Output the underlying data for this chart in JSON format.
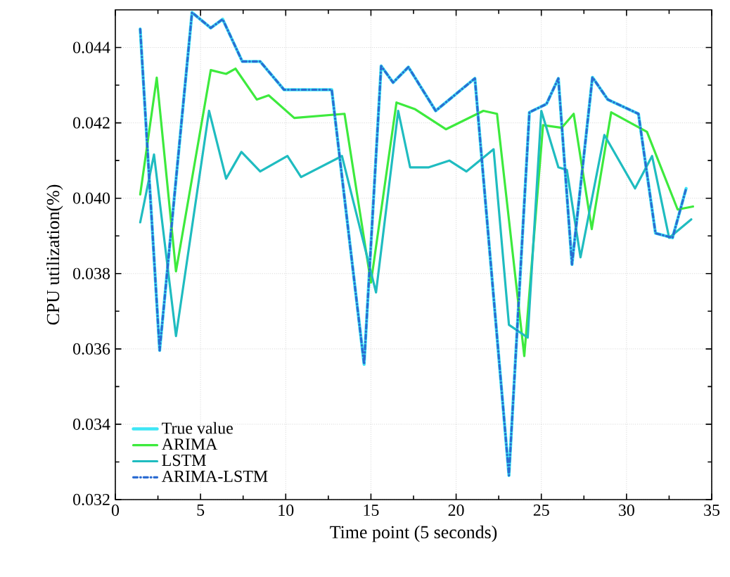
{
  "chart_data": {
    "type": "line",
    "xlabel": "Time point (5 seconds)",
    "ylabel": "CPU utilization(%)",
    "xlim": [
      0,
      35
    ],
    "ylim": [
      0.032,
      0.045
    ],
    "xticks": [
      0,
      5,
      10,
      15,
      20,
      25,
      30,
      35
    ],
    "yticks": [
      0.032,
      0.034,
      0.036,
      0.038,
      {
        "value": 0.04,
        "label": "0.040"
      },
      0.042,
      0.044
    ],
    "grid": true,
    "legend": "bottom left",
    "marker": "none",
    "series": [
      {
        "name": "True value",
        "color": "#3fe6f5",
        "line_style": "solid",
        "x": [
          1.46,
          2.6,
          4.5,
          5.6,
          6.3,
          7.45,
          8.5,
          9.9,
          12.7,
          14.6,
          15.6,
          16.3,
          17.2,
          18.8,
          21.1,
          23.1,
          24.3,
          25.3,
          26.0,
          26.8,
          28.0,
          28.9,
          30.7,
          31.7,
          32.7,
          33.5
        ],
        "values": [
          0.04449,
          0.03596,
          0.04493,
          0.04452,
          0.04475,
          0.04363,
          0.04363,
          0.04288,
          0.04288,
          0.03559,
          0.04351,
          0.04307,
          0.04348,
          0.04232,
          0.04318,
          0.03264,
          0.04228,
          0.0425,
          0.04318,
          0.03824,
          0.04321,
          0.04262,
          0.04224,
          0.03907,
          0.03895,
          0.04026
        ]
      },
      {
        "name": "ARIMA",
        "color": "#3dea3d",
        "line_style": "solid",
        "x": [
          1.46,
          2.43,
          3.56,
          5.6,
          6.5,
          7.05,
          8.3,
          9.0,
          10.5,
          13.45,
          15.0,
          16.5,
          17.6,
          19.4,
          21.6,
          22.4,
          24.0,
          25.1,
          26.2,
          26.9,
          27.96,
          29.1,
          31.2,
          33.0,
          33.9
        ],
        "values": [
          0.0401,
          0.0432,
          0.03806,
          0.0434,
          0.0433,
          0.04344,
          0.04262,
          0.04273,
          0.04213,
          0.04224,
          0.03776,
          0.04254,
          0.04236,
          0.04183,
          0.04232,
          0.04224,
          0.03581,
          0.04194,
          0.04187,
          0.04224,
          0.03918,
          0.04228,
          0.04176,
          0.0397,
          0.03978
        ]
      },
      {
        "name": "LSTM",
        "color": "#1fbcc0",
        "line_style": "solid",
        "x": [
          1.46,
          2.27,
          3.56,
          5.5,
          6.5,
          7.4,
          8.5,
          10.1,
          10.9,
          13.3,
          15.3,
          16.6,
          17.3,
          18.4,
          19.6,
          20.6,
          22.2,
          23.1,
          24.2,
          25.0,
          26.0,
          26.5,
          27.3,
          28.7,
          30.5,
          31.5,
          32.5,
          33.8
        ],
        "values": [
          0.03936,
          0.04116,
          0.03634,
          0.04232,
          0.04052,
          0.04123,
          0.04071,
          0.04112,
          0.04056,
          0.04112,
          0.0375,
          0.04232,
          0.04082,
          0.04082,
          0.041,
          0.04071,
          0.0413,
          0.03664,
          0.0363,
          0.04232,
          0.04082,
          0.04075,
          0.03843,
          0.04168,
          0.04026,
          0.04112,
          0.03895,
          0.03944
        ]
      },
      {
        "name": "ARIMA-LSTM",
        "color": "#2b6cd2",
        "line_style": "dashdotted",
        "x": [
          1.46,
          2.6,
          4.5,
          5.6,
          6.3,
          7.45,
          8.5,
          9.9,
          12.7,
          14.6,
          15.6,
          16.3,
          17.2,
          18.8,
          21.1,
          23.1,
          24.3,
          25.3,
          26.0,
          26.8,
          28.0,
          28.9,
          30.7,
          31.7,
          32.7,
          33.5
        ],
        "values": [
          0.04449,
          0.03596,
          0.04493,
          0.04452,
          0.04475,
          0.04363,
          0.04363,
          0.04288,
          0.04288,
          0.03559,
          0.04351,
          0.04307,
          0.04348,
          0.04232,
          0.04318,
          0.03264,
          0.04228,
          0.0425,
          0.04318,
          0.03824,
          0.04321,
          0.04262,
          0.04224,
          0.03907,
          0.03895,
          0.04026
        ]
      }
    ]
  }
}
